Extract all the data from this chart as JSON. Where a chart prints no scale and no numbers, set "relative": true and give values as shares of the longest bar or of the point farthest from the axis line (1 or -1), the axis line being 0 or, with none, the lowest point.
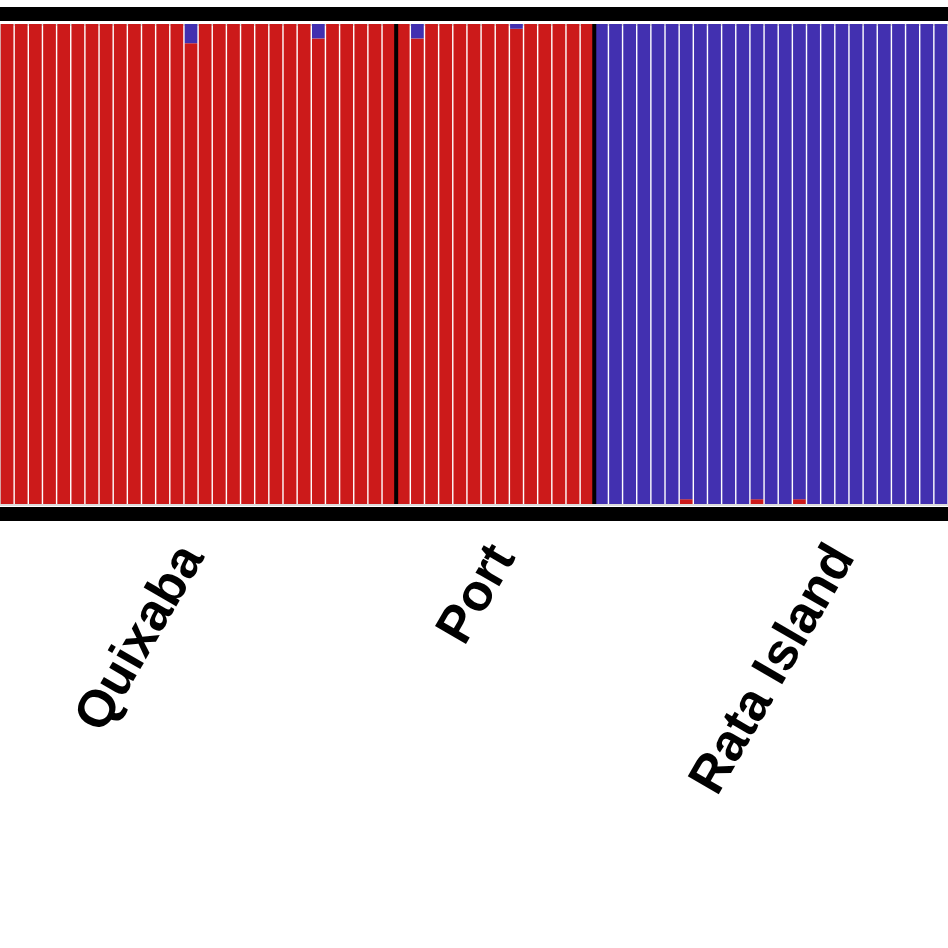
{
  "chart_data": {
    "type": "bar",
    "stacked": true,
    "relative": true,
    "grid": false,
    "tick_labels": "x",
    "categories": [
      null,
      null,
      null,
      null,
      null,
      null,
      null,
      null,
      null,
      null,
      null,
      null,
      null,
      "Quixaba",
      null,
      null,
      null,
      null,
      null,
      null,
      null,
      null,
      null,
      null,
      null,
      null,
      null,
      null,
      null,
      null,
      null,
      null,
      null,
      null,
      null,
      "Port",
      null,
      null,
      null,
      null,
      null,
      null,
      null,
      null,
      null,
      null,
      null,
      null,
      null,
      null,
      null,
      null,
      null,
      null,
      null,
      null,
      null,
      null,
      null,
      "Rata Island",
      null,
      null,
      null,
      null,
      null,
      null,
      null
    ],
    "series": [
      {
        "color": "#cc1a1a",
        "values": [
          1,
          1,
          1,
          1,
          1,
          1,
          1,
          1,
          1,
          1,
          1,
          1,
          1,
          0.96,
          1,
          1,
          1,
          1,
          1,
          1,
          1,
          1,
          0.97,
          1,
          1,
          1,
          1,
          1,
          1,
          0.97,
          1,
          1,
          1,
          1,
          1,
          1,
          0.99,
          1,
          1,
          1,
          1,
          1,
          0,
          0,
          0,
          0,
          0,
          0,
          0.01,
          0,
          0,
          0,
          0,
          0.01,
          0,
          0,
          0.01,
          0,
          0,
          0,
          0,
          0,
          0,
          0,
          0,
          0,
          0
        ]
      },
      {
        "color": "#4230b0",
        "values": [
          0,
          0,
          0,
          0,
          0,
          0,
          0,
          0,
          0,
          0,
          0,
          0,
          0,
          0.04,
          0,
          0,
          0,
          0,
          0,
          0,
          0,
          0,
          0.03,
          0,
          0,
          0,
          0,
          0,
          0,
          0.03,
          0,
          0,
          0,
          0,
          0,
          0,
          0.01,
          0,
          0,
          0,
          0,
          0,
          1,
          1,
          1,
          1,
          1,
          1,
          0.99,
          1,
          1,
          1,
          1,
          0.99,
          1,
          1,
          0.99,
          1,
          1,
          1,
          1,
          1,
          1,
          1,
          1,
          1,
          1
        ]
      }
    ]
  }
}
